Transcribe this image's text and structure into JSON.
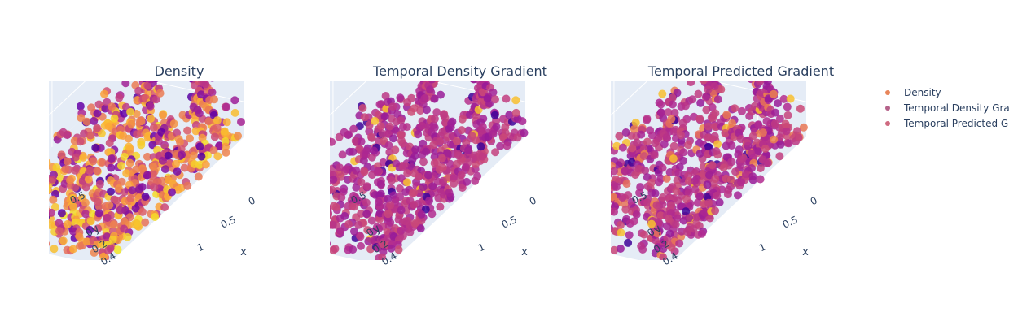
{
  "chart_data": [
    {
      "type": "scatter3d",
      "title": "Density",
      "series_name": "Density",
      "axes": {
        "x": {
          "label": "x",
          "ticks": [
            "0",
            "0.5",
            "1"
          ]
        },
        "y": {
          "label": "y",
          "ticks": [
            "0",
            "0.2",
            "0.4"
          ]
        },
        "z": {
          "label": "",
          "ticks": [
            "0.5"
          ]
        }
      },
      "colorscale": "plasma",
      "color_bias": 0.45
    },
    {
      "type": "scatter3d",
      "title": "Temporal Density Gradient",
      "series_name": "Temporal Density Gradient",
      "axes": {
        "x": {
          "label": "x",
          "ticks": [
            "0",
            "0.5",
            "1"
          ]
        },
        "y": {
          "label": "y",
          "ticks": [
            "0",
            "0.2",
            "0.4"
          ]
        },
        "z": {
          "label": "",
          "ticks": [
            "0.5"
          ]
        }
      },
      "colorscale": "plasma",
      "color_bias": 0.0
    },
    {
      "type": "scatter3d",
      "title": "Temporal Predicted Gradient",
      "series_name": "Temporal Predicted Gradient",
      "axes": {
        "x": {
          "label": "x",
          "ticks": [
            "0",
            "0.5",
            "1"
          ]
        },
        "y": {
          "label": "y",
          "ticks": [
            "0",
            "0.2",
            "0.4"
          ]
        },
        "z": {
          "label": "",
          "ticks": [
            "0.5"
          ]
        }
      },
      "colorscale": "plasma",
      "color_bias": 0.05
    }
  ],
  "legend": {
    "placement": "top-right",
    "items": [
      {
        "label": "Density",
        "color": "#e8855a"
      },
      {
        "label": "Temporal Density Gra",
        "color": "#b5628a"
      },
      {
        "label": "Temporal Predicted G",
        "color": "#cf6a80"
      }
    ]
  },
  "colors": {
    "scene_bg": "#e5ecf6",
    "grid": "#ffffff",
    "text": "#2a3f5f"
  }
}
